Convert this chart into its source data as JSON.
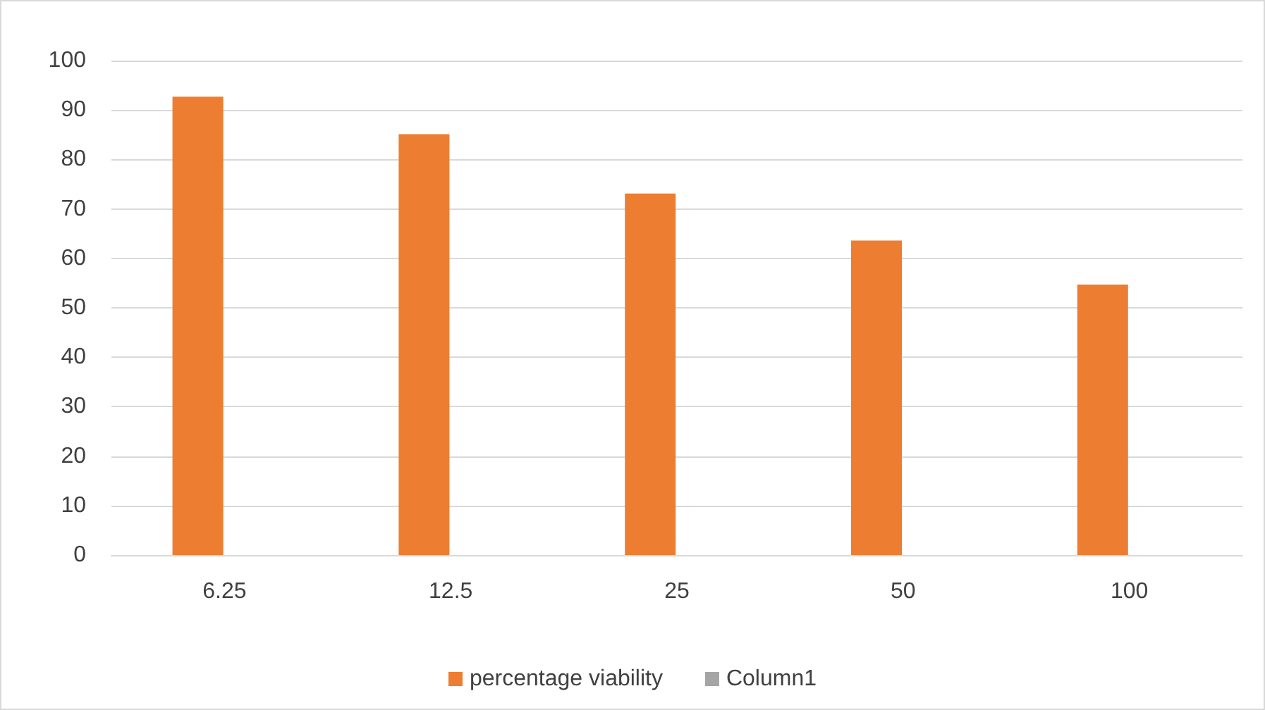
{
  "chart_data": {
    "type": "bar",
    "categories": [
      "6.25",
      "12.5",
      "25",
      "50",
      "100"
    ],
    "series": [
      {
        "name": "percentage viability",
        "color": "#ed7d31",
        "values": [
          92.7,
          85.1,
          73.1,
          63.6,
          54.7
        ]
      },
      {
        "name": "Column1",
        "color": "#a5a5a5",
        "values": [
          null,
          null,
          null,
          null,
          null
        ]
      }
    ],
    "ylim": [
      0,
      100
    ],
    "yticks": [
      0,
      10,
      20,
      30,
      40,
      50,
      60,
      70,
      80,
      90,
      100
    ],
    "grid": "y",
    "legend": "bottom"
  }
}
